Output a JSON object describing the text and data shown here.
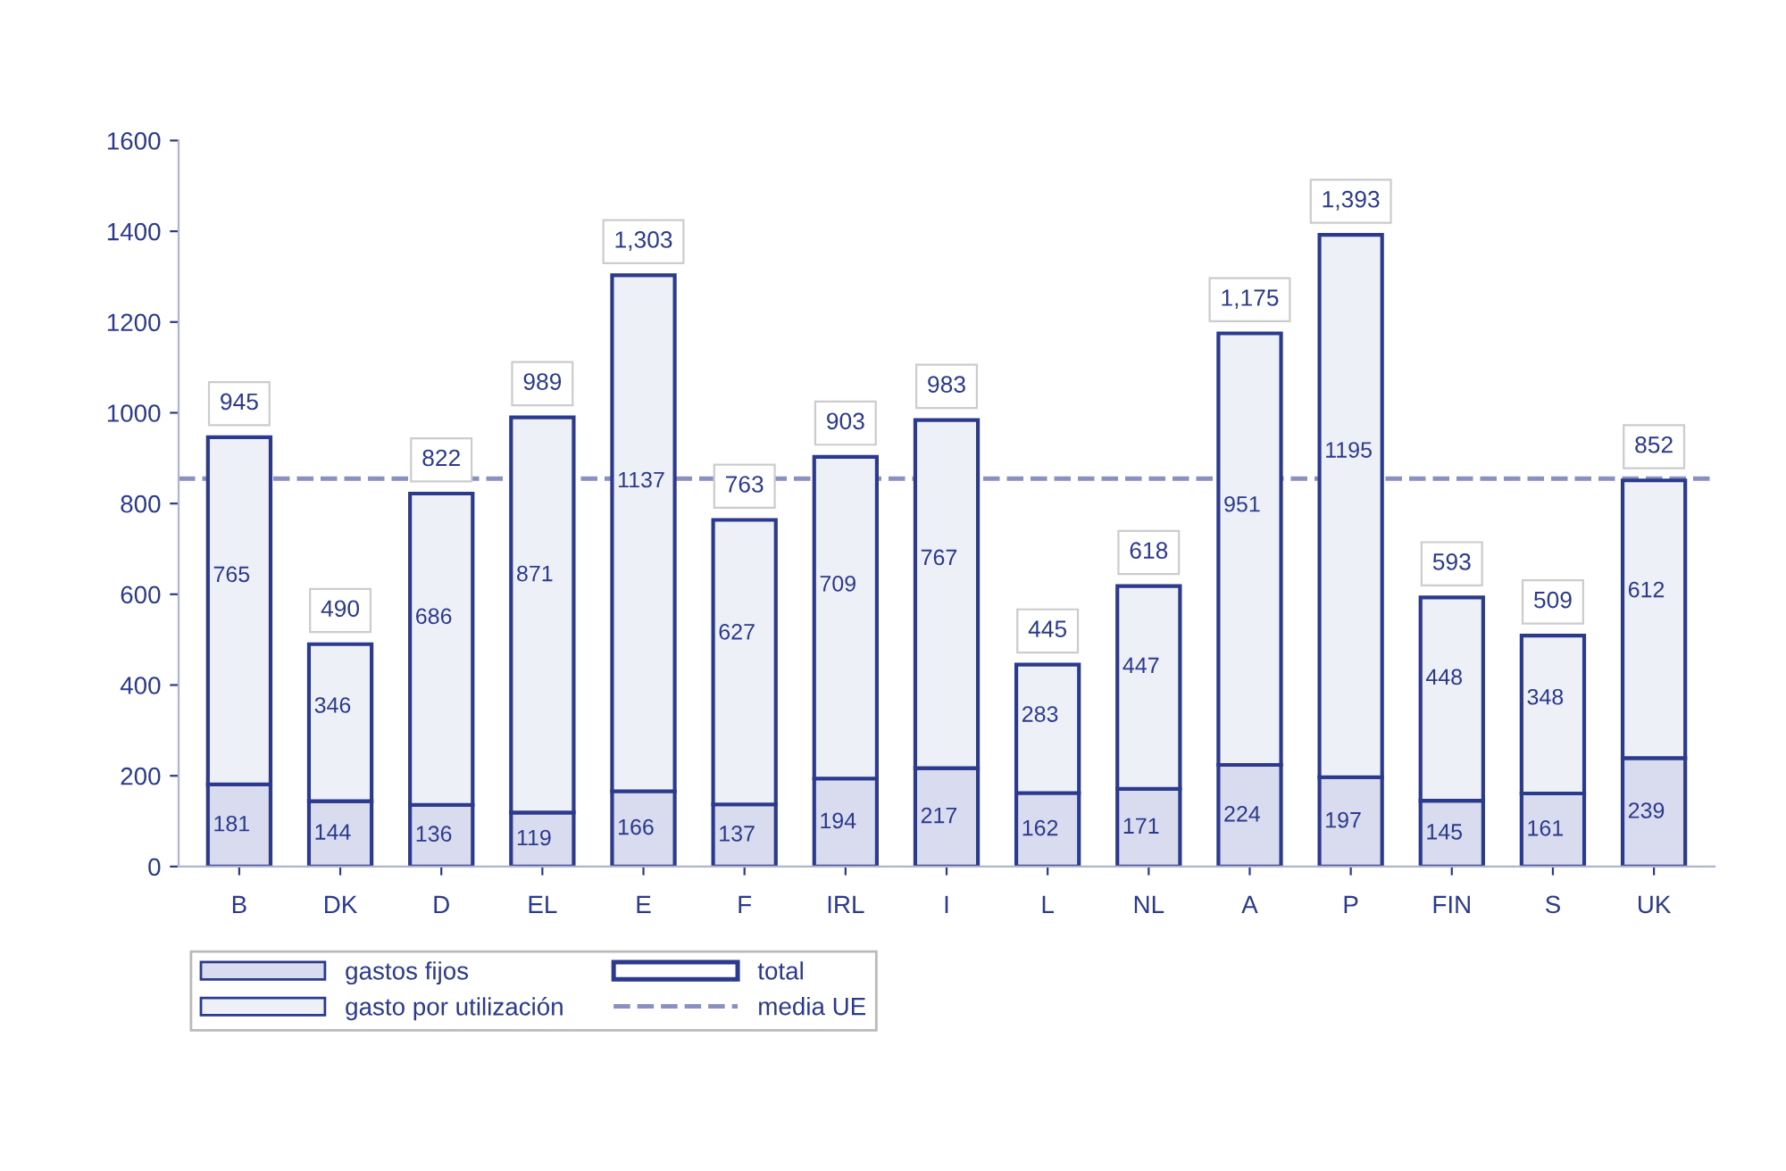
{
  "chart_data": {
    "type": "bar",
    "stacked": true,
    "categories": [
      "B",
      "DK",
      "D",
      "EL",
      "E",
      "F",
      "IRL",
      "I",
      "L",
      "NL",
      "A",
      "P",
      "FIN",
      "S",
      "UK"
    ],
    "series": [
      {
        "name": "gastos fijos",
        "color": "#d9dbef",
        "values": [
          181,
          144,
          136,
          119,
          166,
          137,
          194,
          217,
          162,
          171,
          224,
          197,
          145,
          161,
          239
        ]
      },
      {
        "name": "gasto por utilización",
        "color": "#eef0f8",
        "values": [
          765,
          346,
          686,
          871,
          1137,
          627,
          709,
          767,
          283,
          447,
          951,
          1195,
          448,
          348,
          612
        ]
      }
    ],
    "data_labels": true,
    "totals": [
      "945",
      "490",
      "822",
      "989",
      "1,303",
      "763",
      "903",
      "983",
      "445",
      "618",
      "1,175",
      "1,393",
      "593",
      "509",
      "852"
    ],
    "annotations": [
      "total"
    ],
    "ref_lines": [
      {
        "axis": "y",
        "value": 855,
        "label": "media UE",
        "color": "#8a90c0",
        "line_style": "dashed"
      }
    ],
    "ylim": [
      0,
      1600
    ],
    "yticks": [
      0,
      200,
      400,
      600,
      800,
      1000,
      1200,
      1400,
      1600
    ],
    "grid": false,
    "legend": "bottom left"
  }
}
